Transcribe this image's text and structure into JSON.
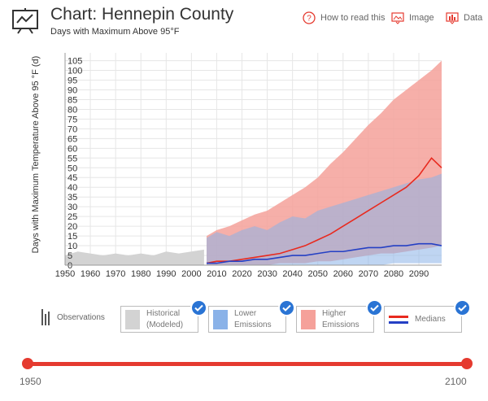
{
  "header": {
    "title": "Chart: Hennepin County",
    "subtitle": "Days with Maximum Above 95°F"
  },
  "tools": {
    "help_label": "How to read this",
    "image_label": "Image",
    "data_label": "Data"
  },
  "legend": {
    "observations_label": "Observations",
    "historical_line1": "Historical",
    "historical_line2": "(Modeled)",
    "lower_line1": "Lower",
    "lower_line2": "Emissions",
    "higher_line1": "Higher",
    "higher_line2": "Emissions",
    "medians_label": "Medians"
  },
  "slider": {
    "min_label": "1950",
    "max_label": "2100"
  },
  "colors": {
    "historical": "#d3d3d3",
    "lower": "#8ab2e8",
    "higher": "#f5a19a",
    "overlap": "#b87c95",
    "lower_median": "#2540c4",
    "higher_median": "#e82a1f",
    "accent": "#e53a2f",
    "check": "#2a74d4"
  },
  "chart_data": {
    "type": "area",
    "title": "",
    "ylabel": "Days with Maximum Temperature Above 95 °F (d)",
    "xlabel": "",
    "xlim": [
      1950,
      2099
    ],
    "ylim": [
      0,
      109
    ],
    "x_ticks": [
      1950,
      1960,
      1970,
      1980,
      1990,
      2000,
      2010,
      2020,
      2030,
      2040,
      2050,
      2060,
      2070,
      2080,
      2090
    ],
    "y_ticks": [
      0,
      5,
      10,
      15,
      20,
      25,
      30,
      35,
      40,
      45,
      50,
      55,
      60,
      65,
      70,
      75,
      80,
      85,
      90,
      95,
      100,
      105
    ],
    "grid": true,
    "historical_modeled": {
      "x": [
        1950,
        1955,
        1960,
        1965,
        1970,
        1975,
        1980,
        1985,
        1990,
        1995,
        2000,
        2005
      ],
      "max": [
        5,
        7,
        6,
        5,
        6,
        5,
        6,
        5,
        7,
        6,
        7,
        8
      ],
      "min": [
        0,
        0,
        0,
        0,
        0,
        0,
        0,
        0,
        0,
        0,
        0,
        0
      ]
    },
    "lower_emissions": {
      "x": [
        2006,
        2010,
        2015,
        2020,
        2025,
        2030,
        2035,
        2040,
        2045,
        2050,
        2055,
        2060,
        2065,
        2070,
        2075,
        2080,
        2085,
        2090,
        2095,
        2099
      ],
      "max": [
        14,
        17,
        15,
        18,
        20,
        18,
        22,
        25,
        24,
        28,
        30,
        32,
        34,
        36,
        38,
        40,
        42,
        44,
        45,
        47
      ],
      "min": [
        0,
        0,
        0,
        0,
        0,
        0,
        0,
        0,
        0,
        0,
        0,
        0,
        0,
        0,
        0,
        1,
        1,
        1,
        1,
        1
      ],
      "median": [
        1,
        1,
        2,
        2,
        3,
        3,
        4,
        5,
        5,
        6,
        7,
        7,
        8,
        9,
        9,
        10,
        10,
        11,
        11,
        10
      ]
    },
    "higher_emissions": {
      "x": [
        2006,
        2010,
        2015,
        2020,
        2025,
        2030,
        2035,
        2040,
        2045,
        2050,
        2055,
        2060,
        2065,
        2070,
        2075,
        2080,
        2085,
        2090,
        2095,
        2099
      ],
      "max": [
        15,
        18,
        20,
        23,
        26,
        28,
        32,
        36,
        40,
        45,
        52,
        58,
        65,
        72,
        78,
        85,
        90,
        95,
        100,
        105
      ],
      "min": [
        0,
        0,
        0,
        0,
        0,
        0,
        1,
        1,
        1,
        2,
        2,
        3,
        4,
        5,
        6,
        6,
        7,
        8,
        9,
        10
      ],
      "median": [
        1,
        2,
        2,
        3,
        4,
        5,
        6,
        8,
        10,
        13,
        16,
        20,
        24,
        28,
        32,
        36,
        40,
        46,
        55,
        50
      ]
    }
  }
}
